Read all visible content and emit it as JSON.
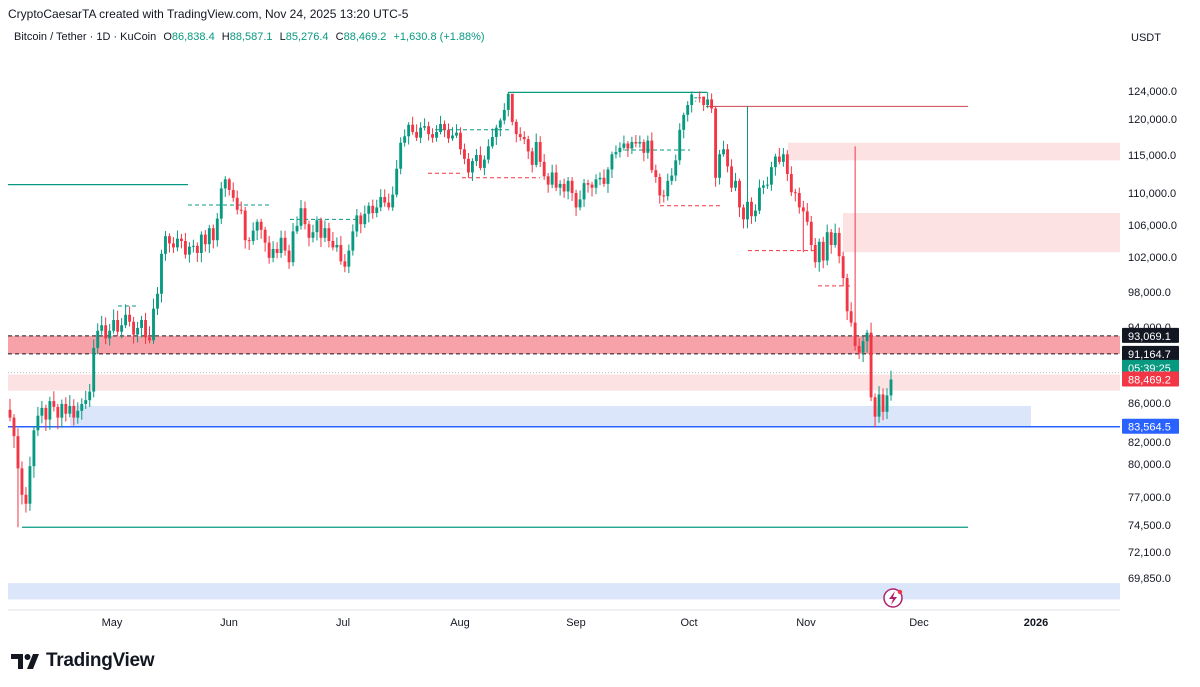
{
  "header": {
    "credit": "CryptoCaesarTA created with TradingView.com, Nov 24, 2025 13:20 UTC-5"
  },
  "legend": {
    "symbol": "Bitcoin / Tether · 1D · KuCoin",
    "open_label": "O",
    "open": "86,838.4",
    "high_label": "H",
    "high": "88,587.1",
    "low_label": "L",
    "low": "85,276.4",
    "close_label": "C",
    "close": "88,469.2",
    "change": "+1,630.8 (+1.88%)"
  },
  "currency": "USDT",
  "brand": {
    "name": "TradingView"
  },
  "colors": {
    "up": "#089981",
    "down": "#f23645",
    "blue": "#2962ff",
    "supply_zone": "#fde2e4",
    "resistance_band": "#f7a1a8",
    "demand_zone": "#dbe6fb"
  },
  "chart_data": {
    "type": "candlestick",
    "title": "Bitcoin / Tether · 1D · KuCoin",
    "ylabel": "USDT",
    "ylim": [
      68000,
      128000
    ],
    "y_ticks": [
      "124,000.0",
      "120,000.0",
      "115,000.0",
      "110,000.0",
      "106,000.0",
      "102,000.0",
      "98,000.0",
      "94,000.0",
      "86,000.0",
      "82,000.0",
      "80,000.0",
      "77,000.0",
      "74,500.0",
      "72,100.0",
      "69,850.0"
    ],
    "x_labels": [
      "May",
      "Jun",
      "Jul",
      "Aug",
      "Sep",
      "Oct",
      "Nov",
      "Dec",
      "2026"
    ],
    "price_badges": [
      {
        "label": "93,069.1",
        "value": 93069.1,
        "color": "#131722"
      },
      {
        "label": "91,164.7",
        "value": 91164.7,
        "color": "#131722"
      },
      {
        "label": "05:39:25",
        "value": 89700,
        "color": "#089981"
      },
      {
        "label": "88,469.2",
        "value": 88469.2,
        "color": "#f23645"
      },
      {
        "label": "83,564.5",
        "value": 83564.5,
        "color": "#2962ff"
      }
    ],
    "key_prices": [
      126200,
      124500,
      116700,
      114300,
      107500,
      102600,
      93069.1,
      91164.7,
      89000,
      87300,
      85700,
      83564.5,
      74300,
      69400,
      68000
    ],
    "closes": [
      84500,
      82600,
      79600,
      77200,
      76400,
      79800,
      83200,
      84700,
      85500,
      84300,
      86200,
      85600,
      84500,
      85900,
      84900,
      85700,
      84500,
      85200,
      85900,
      86300,
      87200,
      91800,
      93600,
      94200,
      92800,
      93600,
      94800,
      93500,
      94200,
      95400,
      94600,
      93200,
      93900,
      94800,
      92900,
      92600,
      96100,
      97800,
      102400,
      104600,
      103700,
      103200,
      104300,
      104000,
      102300,
      103300,
      103400,
      102500,
      104800,
      103600,
      105600,
      104100,
      106800,
      110600,
      111800,
      110400,
      109400,
      107900,
      107800,
      104100,
      104000,
      105300,
      106400,
      105400,
      103800,
      101900,
      103000,
      102500,
      104400,
      102800,
      101400,
      105200,
      105900,
      108100,
      106100,
      104400,
      105100,
      106600,
      104400,
      105600,
      104000,
      103200,
      103500,
      101500,
      100900,
      102800,
      105200,
      107200,
      106100,
      107400,
      108400,
      107500,
      108200,
      109500,
      108800,
      108200,
      109800,
      113200,
      116700,
      117600,
      119200,
      118200,
      117400,
      118800,
      119000,
      117900,
      117400,
      118200,
      119300,
      118500,
      117300,
      117700,
      118100,
      115800,
      114500,
      112700,
      114200,
      115000,
      113300,
      114400,
      116200,
      117500,
      118800,
      119800,
      121300,
      123600,
      119600,
      117900,
      117500,
      117200,
      115500,
      113700,
      116800,
      114100,
      112200,
      111100,
      112700,
      110700,
      111200,
      110200,
      111600,
      110000,
      108200,
      109200,
      111300,
      111100,
      110700,
      111800,
      112000,
      111200,
      113100,
      115100,
      115400,
      116000,
      116600,
      115900,
      116800,
      116600,
      116800,
      115300,
      117000,
      113000,
      112100,
      109700,
      109600,
      111600,
      112300,
      114300,
      118500,
      120600,
      122000,
      123500,
      124900,
      124800,
      122000,
      122800,
      121500,
      112000,
      115100,
      115800,
      113500,
      110700,
      111600,
      108200,
      106700,
      108900,
      107100,
      107800,
      110700,
      111000,
      111100,
      113400,
      114800,
      114100,
      115100,
      112500,
      110100,
      110000,
      108200,
      107700,
      106400,
      103500,
      101400,
      103900,
      101600,
      105100,
      103500,
      105000,
      102100,
      99600,
      95800,
      94500,
      92000,
      91300,
      92500,
      93400,
      86600,
      84600,
      86900,
      85100,
      86800,
      88469.2
    ]
  }
}
